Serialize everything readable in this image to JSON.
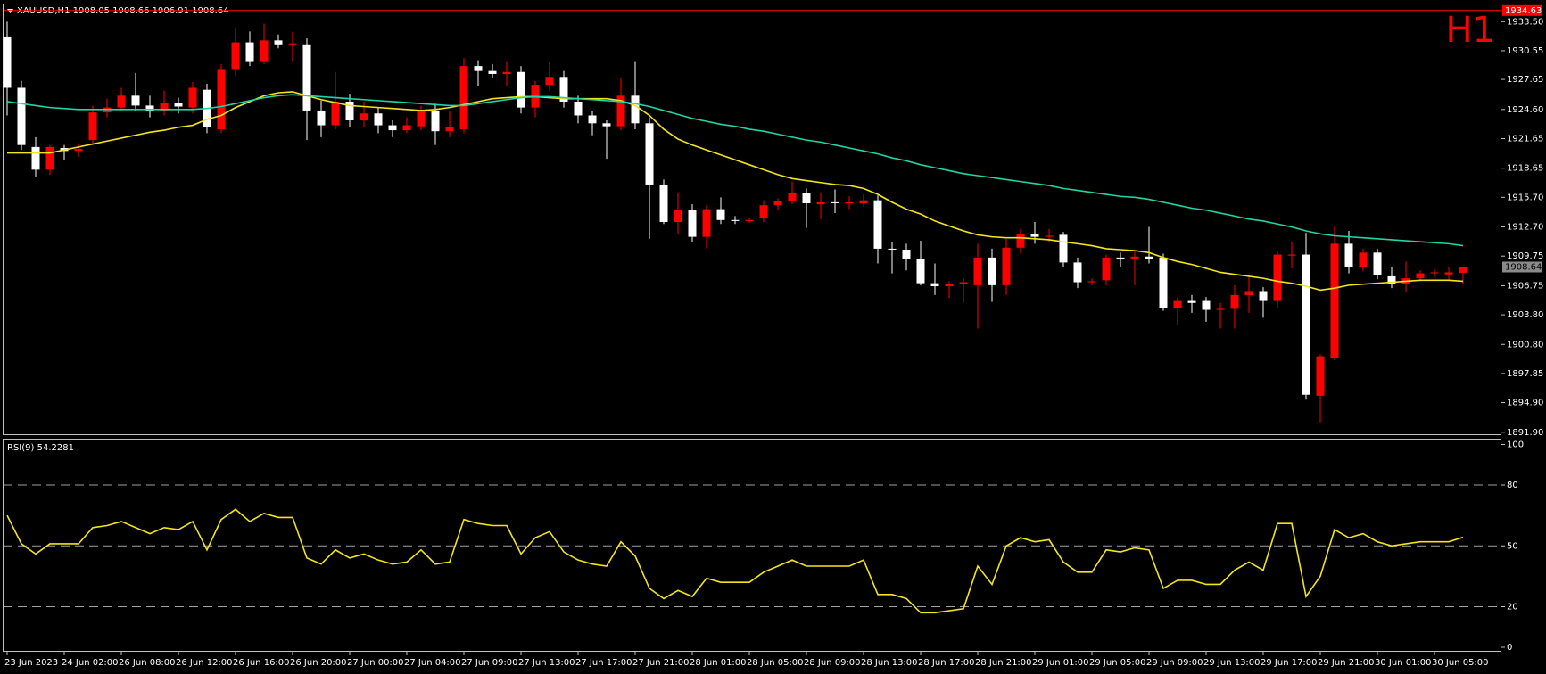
{
  "chart_data": [
    {
      "type": "candlestick",
      "title": "XAUUSD,H1  1908.05 1908.66 1906.91 1908.64",
      "annotation": "H1",
      "up_color": "#ff0000",
      "down_color": "#ffffff",
      "open": [
        1932.0,
        1926.8,
        1920.8,
        1918.5,
        1920.7,
        1920.4,
        1921.5,
        1924.3,
        1924.8,
        1926.0,
        1925.0,
        1924.4,
        1925.3,
        1924.8,
        1926.6,
        1922.6,
        1928.7,
        1931.4,
        1929.5,
        1931.6,
        1931.2,
        1931.2,
        1924.5,
        1923.0,
        1925.4,
        1923.5,
        1924.2,
        1923.0,
        1922.5,
        1922.9,
        1924.5,
        1922.4,
        1922.6,
        1929.0,
        1928.5,
        1928.2,
        1928.4,
        1924.8,
        1927.1,
        1927.9,
        1925.4,
        1924.0,
        1923.2,
        1922.9,
        1926.0,
        1923.2,
        1917.0,
        1913.2,
        1914.4,
        1911.7,
        1914.5,
        1913.4,
        1913.3,
        1913.6,
        1914.9,
        1915.3,
        1916.1,
        1915.0,
        1915.2,
        1915.1,
        1915.1,
        1915.4,
        1910.5,
        1910.4,
        1909.5,
        1907.0,
        1906.7,
        1906.9,
        1906.8,
        1909.6,
        1906.8,
        1910.6,
        1912.0,
        1911.7,
        1911.9,
        1909.1,
        1907.1,
        1907.3,
        1909.6,
        1909.4,
        1909.7,
        1909.6,
        1904.5,
        1905.2,
        1905.2,
        1904.3,
        1904.4,
        1905.8,
        1906.2,
        1905.2,
        1909.8,
        1909.9,
        1895.6,
        1899.4,
        1911.0,
        1908.6,
        1910.1,
        1907.7,
        1906.9,
        1907.5,
        1908.0,
        1907.9,
        1908.05
      ],
      "high": [
        1933.5,
        1927.5,
        1921.8,
        1921.0,
        1921.0,
        1921.2,
        1925.0,
        1925.7,
        1926.8,
        1928.3,
        1926.0,
        1926.5,
        1925.8,
        1927.4,
        1927.2,
        1929.2,
        1932.9,
        1932.5,
        1933.3,
        1932.2,
        1932.5,
        1931.8,
        1925.5,
        1928.4,
        1926.2,
        1925.4,
        1924.8,
        1923.5,
        1923.8,
        1925.0,
        1925.2,
        1924.5,
        1929.8,
        1929.6,
        1929.2,
        1929.5,
        1929.0,
        1927.5,
        1929.4,
        1928.5,
        1926.0,
        1924.5,
        1923.5,
        1927.8,
        1929.5,
        1923.8,
        1917.5,
        1916.2,
        1915.0,
        1914.9,
        1915.7,
        1913.8,
        1913.6,
        1915.4,
        1915.6,
        1917.3,
        1916.6,
        1916.2,
        1916.5,
        1915.8,
        1916.0,
        1915.9,
        1911.2,
        1911.0,
        1911.3,
        1909.0,
        1907.2,
        1907.5,
        1911.0,
        1910.5,
        1911.5,
        1912.5,
        1913.2,
        1912.5,
        1912.2,
        1909.6,
        1907.5,
        1909.9,
        1910.1,
        1910.2,
        1912.7,
        1910.0,
        1905.6,
        1905.8,
        1905.6,
        1905.0,
        1906.8,
        1907.6,
        1906.6,
        1910.2,
        1911.2,
        1912.1,
        1899.8,
        1912.8,
        1912.3,
        1910.5,
        1910.5,
        1908.6,
        1909.2,
        1908.3,
        1908.4,
        1908.6,
        1908.66
      ],
      "low": [
        1924.0,
        1920.5,
        1917.8,
        1918.0,
        1919.5,
        1919.8,
        1921.0,
        1923.8,
        1924.5,
        1924.5,
        1923.8,
        1924.0,
        1924.2,
        1924.2,
        1922.2,
        1922.2,
        1928.0,
        1929.0,
        1929.2,
        1930.8,
        1929.5,
        1921.5,
        1921.8,
        1922.6,
        1922.8,
        1922.8,
        1922.2,
        1921.8,
        1922.2,
        1922.5,
        1921.0,
        1921.8,
        1922.2,
        1927.0,
        1927.8,
        1927.0,
        1924.2,
        1923.8,
        1926.5,
        1924.8,
        1923.2,
        1922.0,
        1919.6,
        1922.5,
        1922.6,
        1911.5,
        1913.0,
        1912.0,
        1911.2,
        1910.5,
        1913.0,
        1913.0,
        1913.1,
        1913.2,
        1914.4,
        1915.0,
        1912.6,
        1913.5,
        1914.1,
        1914.5,
        1914.8,
        1909.0,
        1908.0,
        1908.3,
        1906.8,
        1905.8,
        1905.5,
        1905.0,
        1902.4,
        1905.1,
        1905.8,
        1910.0,
        1911.0,
        1911.2,
        1908.6,
        1906.5,
        1906.8,
        1906.8,
        1908.6,
        1906.8,
        1909.0,
        1904.2,
        1902.8,
        1904.0,
        1903.1,
        1902.4,
        1902.4,
        1904.0,
        1903.5,
        1904.5,
        1908.5,
        1895.2,
        1892.9,
        1899.2,
        1908.0,
        1908.2,
        1907.4,
        1906.5,
        1906.1,
        1907.2,
        1907.6,
        1907.4,
        1906.91
      ],
      "close": [
        1926.8,
        1921.0,
        1918.5,
        1920.8,
        1920.4,
        1920.6,
        1924.3,
        1924.8,
        1926.0,
        1925.0,
        1924.4,
        1925.3,
        1924.9,
        1926.8,
        1922.8,
        1928.7,
        1931.4,
        1929.5,
        1931.6,
        1931.2,
        1931.3,
        1924.5,
        1923.0,
        1925.4,
        1923.5,
        1924.2,
        1923.0,
        1922.5,
        1923.0,
        1924.5,
        1922.4,
        1922.8,
        1929.0,
        1928.5,
        1928.2,
        1928.4,
        1924.8,
        1927.1,
        1927.9,
        1925.4,
        1924.0,
        1923.2,
        1922.9,
        1926.0,
        1923.2,
        1917.0,
        1913.2,
        1914.4,
        1911.7,
        1914.5,
        1913.4,
        1913.3,
        1913.4,
        1914.9,
        1915.3,
        1916.1,
        1915.1,
        1915.2,
        1915.1,
        1915.2,
        1915.4,
        1910.5,
        1910.4,
        1909.5,
        1907.0,
        1906.7,
        1906.9,
        1907.1,
        1909.6,
        1906.8,
        1910.6,
        1912.0,
        1911.7,
        1911.8,
        1909.1,
        1907.1,
        1907.2,
        1909.6,
        1909.4,
        1909.7,
        1909.5,
        1904.5,
        1905.2,
        1905.0,
        1904.3,
        1904.4,
        1905.8,
        1906.2,
        1905.2,
        1909.9,
        1909.9,
        1895.7,
        1899.6,
        1911.0,
        1908.6,
        1910.1,
        1907.8,
        1906.9,
        1907.5,
        1908.0,
        1908.1,
        1908.1,
        1908.64
      ],
      "series": [
        {
          "color": "#f2e51b",
          "values": [
            1920.2,
            1920.2,
            1920.2,
            1920.2,
            1920.5,
            1920.8,
            1921.1,
            1921.4,
            1921.7,
            1922.0,
            1922.3,
            1922.5,
            1922.8,
            1923.0,
            1923.6,
            1924.0,
            1924.8,
            1925.4,
            1926.0,
            1926.3,
            1926.4,
            1926.0,
            1925.6,
            1925.3,
            1925.0,
            1924.9,
            1924.8,
            1924.7,
            1924.6,
            1924.5,
            1924.6,
            1924.8,
            1925.1,
            1925.4,
            1925.7,
            1925.8,
            1925.9,
            1925.9,
            1925.8,
            1925.7,
            1925.7,
            1925.7,
            1925.7,
            1925.5,
            1925.0,
            1924.0,
            1922.6,
            1921.6,
            1921.0,
            1920.5,
            1920.0,
            1919.5,
            1919.0,
            1918.5,
            1918.0,
            1917.6,
            1917.4,
            1917.2,
            1917.0,
            1916.9,
            1916.6,
            1916.0,
            1915.2,
            1914.5,
            1914.0,
            1913.3,
            1912.8,
            1912.3,
            1911.9,
            1911.7,
            1911.6,
            1911.6,
            1911.5,
            1911.4,
            1911.2,
            1911.0,
            1910.8,
            1910.5,
            1910.4,
            1910.3,
            1910.1,
            1909.6,
            1909.2,
            1908.9,
            1908.5,
            1908.1,
            1907.9,
            1907.7,
            1907.5,
            1907.2,
            1907.0,
            1906.7,
            1906.3,
            1906.5,
            1906.8,
            1906.9,
            1907.0,
            1907.1,
            1907.2,
            1907.3,
            1907.3,
            1907.3,
            1907.2
          ]
        },
        {
          "color": "#22d3a6",
          "values": [
            1925.4,
            1925.2,
            1925.0,
            1924.8,
            1924.7,
            1924.6,
            1924.6,
            1924.6,
            1924.6,
            1924.6,
            1924.6,
            1924.6,
            1924.6,
            1924.6,
            1924.7,
            1924.9,
            1925.2,
            1925.5,
            1925.8,
            1926.0,
            1926.1,
            1926.0,
            1925.9,
            1925.8,
            1925.7,
            1925.6,
            1925.5,
            1925.4,
            1925.3,
            1925.2,
            1925.1,
            1925.0,
            1925.0,
            1925.2,
            1925.4,
            1925.6,
            1925.8,
            1925.9,
            1925.9,
            1925.8,
            1925.7,
            1925.6,
            1925.5,
            1925.4,
            1925.2,
            1924.9,
            1924.5,
            1924.1,
            1923.7,
            1923.4,
            1923.1,
            1922.9,
            1922.6,
            1922.4,
            1922.1,
            1921.8,
            1921.5,
            1921.3,
            1921.0,
            1920.7,
            1920.4,
            1920.1,
            1919.7,
            1919.4,
            1919.0,
            1918.7,
            1918.4,
            1918.1,
            1917.9,
            1917.7,
            1917.5,
            1917.3,
            1917.1,
            1916.9,
            1916.6,
            1916.4,
            1916.2,
            1916.0,
            1915.8,
            1915.7,
            1915.5,
            1915.2,
            1914.9,
            1914.6,
            1914.4,
            1914.1,
            1913.8,
            1913.5,
            1913.3,
            1913.0,
            1912.7,
            1912.3,
            1912.0,
            1911.8,
            1911.7,
            1911.6,
            1911.5,
            1911.4,
            1911.3,
            1911.2,
            1911.1,
            1911.0,
            1910.8
          ]
        }
      ],
      "price_lines": [
        {
          "value": 1934.63,
          "color": "#ff0000"
        },
        {
          "value": 1908.64,
          "color": "#8a8a8a"
        }
      ],
      "ylim": [
        1891.7,
        1935.2
      ],
      "yticks": [
        {
          "value": 1933.5,
          "label": "1933.50"
        },
        {
          "value": 1930.55,
          "label": "1930.55"
        },
        {
          "value": 1927.65,
          "label": "1927.65"
        },
        {
          "value": 1924.6,
          "label": "1924.60"
        },
        {
          "value": 1921.65,
          "label": "1921.65"
        },
        {
          "value": 1918.65,
          "label": "1918.65"
        },
        {
          "value": 1915.7,
          "label": "1915.70"
        },
        {
          "value": 1912.7,
          "label": "1912.70"
        },
        {
          "value": 1909.75,
          "label": "1909.75"
        },
        {
          "value": 1906.75,
          "label": "1906.75"
        },
        {
          "value": 1903.8,
          "label": "1903.80"
        },
        {
          "value": 1900.8,
          "label": "1900.80"
        },
        {
          "value": 1897.85,
          "label": "1897.85"
        },
        {
          "value": 1894.9,
          "label": "1894.90"
        },
        {
          "value": 1891.9,
          "label": "1891.90"
        }
      ],
      "xticks": [
        {
          "value": 0,
          "label": "23 Jun 2023"
        },
        {
          "value": 4,
          "label": "24 Jun 02:00"
        },
        {
          "value": 8,
          "label": "26 Jun 08:00"
        },
        {
          "value": 12,
          "label": "26 Jun 12:00"
        },
        {
          "value": 16,
          "label": "26 Jun 16:00"
        },
        {
          "value": 20,
          "label": "26 Jun 20:00"
        },
        {
          "value": 24,
          "label": "27 Jun 00:00"
        },
        {
          "value": 28,
          "label": "27 Jun 04:00"
        },
        {
          "value": 32,
          "label": "27 Jun 09:00"
        },
        {
          "value": 36,
          "label": "27 Jun 13:00"
        },
        {
          "value": 40,
          "label": "27 Jun 17:00"
        },
        {
          "value": 44,
          "label": "27 Jun 21:00"
        },
        {
          "value": 48,
          "label": "28 Jun 01:00"
        },
        {
          "value": 52,
          "label": "28 Jun 05:00"
        },
        {
          "value": 56,
          "label": "28 Jun 09:00"
        },
        {
          "value": 60,
          "label": "28 Jun 13:00"
        },
        {
          "value": 64,
          "label": "28 Jun 17:00"
        },
        {
          "value": 68,
          "label": "28 Jun 21:00"
        },
        {
          "value": 72,
          "label": "29 Jun 01:00"
        },
        {
          "value": 76,
          "label": "29 Jun 05:00"
        },
        {
          "value": 80,
          "label": "29 Jun 09:00"
        },
        {
          "value": 84,
          "label": "29 Jun 13:00"
        },
        {
          "value": 88,
          "label": "29 Jun 17:00"
        },
        {
          "value": 92,
          "label": "29 Jun 21:00"
        },
        {
          "value": 96,
          "label": "30 Jun 01:00"
        },
        {
          "value": 100,
          "label": "30 Jun 05:00"
        }
      ]
    },
    {
      "type": "line",
      "title": "RSI(9) 54.2281",
      "color": "#f2e51b",
      "values": [
        65,
        51,
        46,
        51,
        51,
        51,
        59,
        60,
        62,
        59,
        56,
        59,
        58,
        62,
        48,
        63,
        68,
        62,
        66,
        64,
        64,
        44,
        41,
        48,
        44,
        46,
        43,
        41,
        42,
        48,
        41,
        42,
        63,
        61,
        60,
        60,
        46,
        54,
        57,
        47,
        43,
        41,
        40,
        52,
        45,
        29,
        24,
        28,
        25,
        34,
        32,
        32,
        32,
        37,
        40,
        43,
        40,
        40,
        40,
        40,
        43,
        26,
        26,
        24,
        17,
        17,
        18,
        19,
        40,
        31,
        50,
        54,
        52,
        53,
        42,
        37,
        37,
        48,
        47,
        49,
        48,
        29,
        33,
        33,
        31,
        31,
        38,
        42,
        38,
        61,
        61,
        25,
        35,
        58,
        54,
        56,
        52,
        50,
        51,
        52,
        52,
        52,
        54.2281
      ],
      "ylim": [
        0,
        100
      ],
      "yticks": [
        0,
        20,
        50,
        80,
        100
      ]
    }
  ]
}
